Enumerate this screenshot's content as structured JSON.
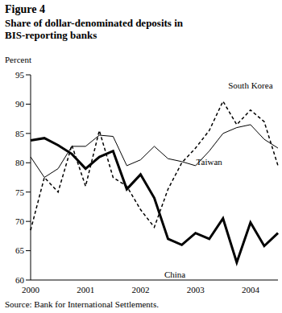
{
  "chart_data": {
    "type": "line",
    "title": "Figure 4",
    "subtitle": "Share of dollar-denominated deposits in BIS-reporting banks",
    "y_label": "Percent",
    "source": "Source: Bank for International Settlements.",
    "categories": [
      "2000",
      null,
      null,
      null,
      "2001",
      null,
      null,
      null,
      "2002",
      null,
      null,
      null,
      "2003",
      null,
      null,
      null,
      "2004",
      null,
      null
    ],
    "series": [
      {
        "name": "China",
        "color": "#000000",
        "line_style": "solid",
        "values": [
          83.8,
          84.2,
          83,
          81.5,
          79,
          81,
          82,
          75.5,
          78,
          74,
          67,
          66,
          68,
          67,
          70.5,
          63,
          69.8,
          65.8,
          68
        ]
      },
      {
        "name": "Taiwan",
        "color": "#000000",
        "line_style": "solid",
        "values": [
          81,
          77.5,
          79,
          82.8,
          82.8,
          84.7,
          84.5,
          79.5,
          80.5,
          82.8,
          80.7,
          80.2,
          79.5,
          82,
          85,
          86,
          86.5,
          84,
          82.5
        ]
      },
      {
        "name": "South Korea",
        "color": "#000000",
        "line_style": "dashed",
        "values": [
          68.5,
          77.5,
          75,
          83,
          76,
          85.5,
          77.5,
          76,
          72,
          69,
          75.5,
          80,
          82.5,
          85.5,
          90.5,
          86.5,
          89,
          87,
          79.5
        ]
      }
    ],
    "ylim": [
      60,
      95
    ],
    "yticks": [
      60,
      65,
      70,
      75,
      80,
      85,
      90,
      95
    ],
    "grid": false,
    "marker": "none"
  }
}
